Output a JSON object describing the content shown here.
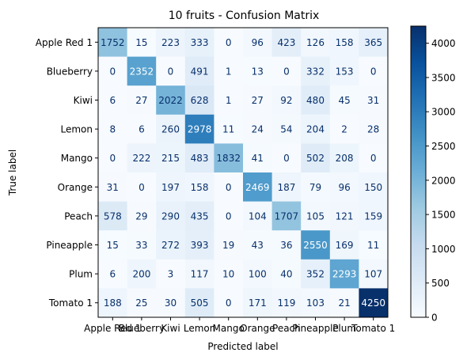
{
  "chart_data": {
    "type": "heatmap",
    "title": "10 fruits - Confusion Matrix",
    "xlabel": "Predicted label",
    "ylabel": "True label",
    "labels": [
      "Apple Red 1",
      "Blueberry",
      "Kiwi",
      "Lemon",
      "Mango",
      "Orange",
      "Peach",
      "Pineapple",
      "Plum",
      "Tomato 1"
    ],
    "matrix": [
      [
        1752,
        15,
        223,
        333,
        0,
        96,
        423,
        126,
        158,
        365
      ],
      [
        0,
        2352,
        0,
        491,
        1,
        13,
        0,
        332,
        153,
        0
      ],
      [
        6,
        27,
        2022,
        628,
        1,
        27,
        92,
        480,
        45,
        31
      ],
      [
        8,
        6,
        260,
        2978,
        11,
        24,
        54,
        204,
        2,
        28
      ],
      [
        0,
        222,
        215,
        483,
        1832,
        41,
        0,
        502,
        208,
        0
      ],
      [
        31,
        0,
        197,
        158,
        0,
        2469,
        187,
        79,
        96,
        150
      ],
      [
        578,
        29,
        290,
        435,
        0,
        104,
        1707,
        105,
        121,
        159
      ],
      [
        15,
        33,
        272,
        393,
        19,
        43,
        36,
        2550,
        169,
        11
      ],
      [
        6,
        200,
        3,
        117,
        10,
        100,
        40,
        352,
        2293,
        107
      ],
      [
        188,
        25,
        30,
        505,
        0,
        171,
        119,
        103,
        21,
        4250
      ]
    ],
    "colormap": "Blues",
    "vmin": 0,
    "vmax": 4250,
    "colorbar_ticks": [
      0,
      500,
      1000,
      1500,
      2000,
      2500,
      3000,
      3500,
      4000
    ]
  }
}
